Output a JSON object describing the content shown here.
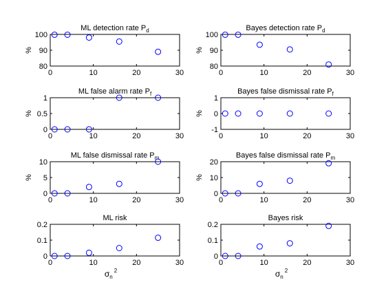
{
  "chart_data": [
    {
      "type": "scatter",
      "title": "ML detection rate P",
      "title_subscript": "d",
      "ylabel": "%",
      "xlabel": "",
      "xlim": [
        0,
        30
      ],
      "ylim": [
        80,
        100
      ],
      "xticks": [
        "0",
        "10",
        "20",
        "30"
      ],
      "yticks": [
        "80",
        "90",
        "100"
      ],
      "x": [
        1,
        4,
        9,
        16,
        25
      ],
      "y": [
        99.8,
        99.8,
        98,
        95.5,
        89
      ],
      "marker": "circle",
      "color": "#0000ff"
    },
    {
      "type": "scatter",
      "title": "Bayes detection rate P",
      "title_subscript": "d",
      "ylabel": "%",
      "xlabel": "",
      "xlim": [
        0,
        30
      ],
      "ylim": [
        80,
        100
      ],
      "xticks": [
        "0",
        "10",
        "20",
        "30"
      ],
      "yticks": [
        "80",
        "90",
        "100"
      ],
      "x": [
        1,
        4,
        9,
        16,
        25
      ],
      "y": [
        99.8,
        99.8,
        93.5,
        90.5,
        81
      ],
      "marker": "circle",
      "color": "#0000ff"
    },
    {
      "type": "scatter",
      "title": "ML false alarm rate P",
      "title_subscript": "f",
      "ylabel": "%",
      "xlabel": "",
      "xlim": [
        0,
        30
      ],
      "ylim": [
        0,
        1
      ],
      "xticks": [
        "0",
        "10",
        "20",
        "30"
      ],
      "yticks": [
        "0",
        "0.5",
        "1"
      ],
      "x": [
        1,
        4,
        9,
        16,
        25
      ],
      "y": [
        0,
        0,
        0,
        1,
        1
      ],
      "marker": "circle",
      "color": "#0000ff"
    },
    {
      "type": "scatter",
      "title": "Bayes false dismissal rate P",
      "title_subscript": "f",
      "ylabel": "%",
      "xlabel": "",
      "xlim": [
        0,
        30
      ],
      "ylim": [
        -1,
        1
      ],
      "xticks": [
        "0",
        "10",
        "20",
        "30"
      ],
      "yticks": [
        "-1",
        "0",
        "1"
      ],
      "x": [
        1,
        4,
        9,
        16,
        25
      ],
      "y": [
        0,
        0,
        0,
        0,
        0
      ],
      "marker": "circle",
      "color": "#0000ff"
    },
    {
      "type": "scatter",
      "title": "ML false dismissal rate P",
      "title_subscript": "m",
      "ylabel": "%",
      "xlabel": "",
      "xlim": [
        0,
        30
      ],
      "ylim": [
        0,
        10
      ],
      "xticks": [
        "0",
        "10",
        "20",
        "30"
      ],
      "yticks": [
        "0",
        "5",
        "10"
      ],
      "x": [
        1,
        4,
        9,
        16,
        25
      ],
      "y": [
        0,
        0,
        2,
        3,
        10
      ],
      "marker": "circle",
      "color": "#0000ff"
    },
    {
      "type": "scatter",
      "title": "Bayes false dismissal rate P",
      "title_subscript": "m",
      "ylabel": "%",
      "xlabel": "",
      "xlim": [
        0,
        30
      ],
      "ylim": [
        0,
        20
      ],
      "xticks": [
        "0",
        "10",
        "20",
        "30"
      ],
      "yticks": [
        "0",
        "10",
        "20"
      ],
      "x": [
        1,
        4,
        9,
        16,
        25
      ],
      "y": [
        0,
        0,
        6,
        8,
        19
      ],
      "marker": "circle",
      "color": "#0000ff"
    },
    {
      "type": "scatter",
      "title": "ML risk",
      "title_subscript": "",
      "ylabel": "",
      "xlabel": "σ",
      "xlabel_subscript": "n",
      "xlabel_superscript": "2",
      "xlim": [
        0,
        30
      ],
      "ylim": [
        0,
        0.2
      ],
      "xticks": [
        "0",
        "10",
        "20",
        "30"
      ],
      "yticks": [
        "0",
        "0.1",
        "0.2"
      ],
      "x": [
        1,
        4,
        9,
        16,
        25
      ],
      "y": [
        0,
        0,
        0.02,
        0.05,
        0.115
      ],
      "marker": "circle",
      "color": "#0000ff"
    },
    {
      "type": "scatter",
      "title": "Bayes risk",
      "title_subscript": "",
      "ylabel": "",
      "xlabel": "σ",
      "xlabel_subscript": "n",
      "xlabel_superscript": "2",
      "xlim": [
        0,
        30
      ],
      "ylim": [
        0,
        0.2
      ],
      "xticks": [
        "0",
        "10",
        "20",
        "30"
      ],
      "yticks": [
        "0",
        "0.1",
        "0.2"
      ],
      "x": [
        1,
        4,
        9,
        16,
        25
      ],
      "y": [
        0,
        0,
        0.06,
        0.08,
        0.19
      ],
      "marker": "circle",
      "color": "#0000ff"
    }
  ]
}
